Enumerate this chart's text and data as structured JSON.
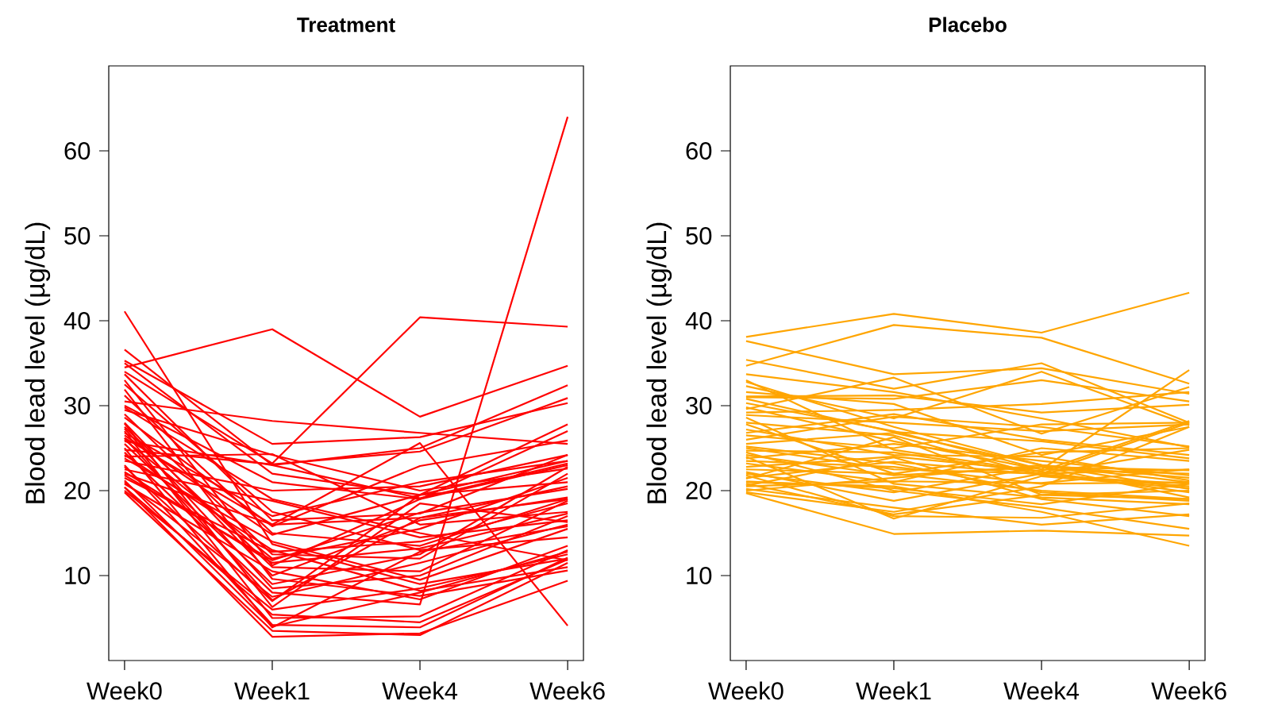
{
  "chart_data": [
    {
      "type": "line",
      "title": "Treatment",
      "ylabel": "Blood lead level (µg/dL)",
      "categories": [
        "Week0",
        "Week1",
        "Week4",
        "Week6"
      ],
      "ylim": [
        0,
        70
      ],
      "yticks": [
        10,
        20,
        30,
        40,
        50,
        60
      ],
      "series": [
        {
          "color": "#ff0000",
          "values": [
            34.5,
            39.0,
            28.7,
            34.7
          ]
        },
        {
          "color": "#ff0000",
          "values": [
            34.0,
            23.2,
            40.4,
            39.3
          ]
        },
        {
          "color": "#ff0000",
          "values": [
            41.1,
            13.7,
            9.0,
            12.0
          ]
        },
        {
          "color": "#ff0000",
          "values": [
            24.5,
            8.0,
            6.6,
            64.0
          ]
        },
        {
          "color": "#ff0000",
          "values": [
            26.2,
            16.0,
            25.6,
            4.1
          ]
        },
        {
          "color": "#ff0000",
          "values": [
            30.5,
            28.2,
            26.8,
            25.5
          ]
        },
        {
          "color": "#ff0000",
          "values": [
            35.3,
            25.5,
            26.3,
            30.3
          ]
        },
        {
          "color": "#ff0000",
          "values": [
            26.5,
            14.8,
            19.5,
            21.0
          ]
        },
        {
          "color": "#ff0000",
          "values": [
            25.8,
            23.0,
            19.1,
            23.2
          ]
        },
        {
          "color": "#ff0000",
          "values": [
            20.4,
            2.8,
            3.2,
            9.4
          ]
        },
        {
          "color": "#ff0000",
          "values": [
            20.4,
            5.4,
            4.5,
            11.9
          ]
        },
        {
          "color": "#ff0000",
          "values": [
            24.8,
            23.1,
            24.6,
            30.9
          ]
        },
        {
          "color": "#ff0000",
          "values": [
            27.9,
            6.3,
            18.5,
            16.3
          ]
        },
        {
          "color": "#ff0000",
          "values": [
            28.6,
            15.8,
            22.9,
            25.9
          ]
        },
        {
          "color": "#ff0000",
          "values": [
            31.9,
            9.6,
            7.6,
            10.6
          ]
        },
        {
          "color": "#ff0000",
          "values": [
            26.2,
            7.1,
            16.8,
            20.5
          ]
        },
        {
          "color": "#ff0000",
          "values": [
            21.8,
            11.8,
            17.4,
            20.2
          ]
        },
        {
          "color": "#ff0000",
          "values": [
            23.0,
            4.2,
            3.9,
            12.1
          ]
        },
        {
          "color": "#ff0000",
          "values": [
            22.2,
            11.5,
            13.2,
            17.3
          ]
        },
        {
          "color": "#ff0000",
          "values": [
            25.0,
            3.9,
            12.8,
            15.8
          ]
        },
        {
          "color": "#ff0000",
          "values": [
            36.6,
            23.0,
            25.0,
            32.4
          ]
        },
        {
          "color": "#ff0000",
          "values": [
            35.0,
            22.0,
            19.5,
            27.8
          ]
        },
        {
          "color": "#ff0000",
          "values": [
            33.7,
            16.5,
            17.3,
            24.2
          ]
        },
        {
          "color": "#ff0000",
          "values": [
            29.5,
            24.2,
            20.0,
            22.6
          ]
        },
        {
          "color": "#ff0000",
          "values": [
            31.2,
            15.0,
            13.5,
            19.0
          ]
        },
        {
          "color": "#ff0000",
          "values": [
            29.0,
            12.5,
            12.0,
            22.0
          ]
        },
        {
          "color": "#ff0000",
          "values": [
            27.5,
            11.0,
            10.5,
            18.8
          ]
        },
        {
          "color": "#ff0000",
          "values": [
            26.8,
            17.0,
            21.0,
            23.5
          ]
        },
        {
          "color": "#ff0000",
          "values": [
            30.0,
            21.0,
            19.0,
            23.0
          ]
        },
        {
          "color": "#ff0000",
          "values": [
            24.0,
            24.3,
            16.0,
            17.5
          ]
        },
        {
          "color": "#ff0000",
          "values": [
            23.5,
            20.0,
            20.5,
            24.2
          ]
        },
        {
          "color": "#ff0000",
          "values": [
            22.5,
            18.8,
            14.5,
            16.5
          ]
        },
        {
          "color": "#ff0000",
          "values": [
            21.5,
            12.8,
            14.0,
            18.5
          ]
        },
        {
          "color": "#ff0000",
          "values": [
            21.0,
            7.5,
            11.5,
            16.0
          ]
        },
        {
          "color": "#ff0000",
          "values": [
            20.0,
            6.0,
            8.5,
            12.5
          ]
        },
        {
          "color": "#ff0000",
          "values": [
            19.8,
            3.5,
            3.0,
            11.5
          ]
        },
        {
          "color": "#ff0000",
          "values": [
            27.0,
            5.0,
            5.2,
            13.0
          ]
        },
        {
          "color": "#ff0000",
          "values": [
            28.0,
            10.0,
            16.5,
            19.2
          ]
        },
        {
          "color": "#ff0000",
          "values": [
            32.5,
            17.5,
            13.0,
            14.5
          ]
        },
        {
          "color": "#ff0000",
          "values": [
            25.5,
            9.0,
            12.5,
            22.8
          ]
        },
        {
          "color": "#ff0000",
          "values": [
            24.2,
            13.0,
            8.2,
            11.0
          ]
        },
        {
          "color": "#ff0000",
          "values": [
            22.8,
            7.0,
            19.5,
            23.5
          ]
        },
        {
          "color": "#ff0000",
          "values": [
            21.2,
            4.0,
            8.0,
            12.8
          ]
        },
        {
          "color": "#ff0000",
          "values": [
            26.0,
            12.0,
            15.5,
            21.5
          ]
        },
        {
          "color": "#ff0000",
          "values": [
            29.8,
            19.0,
            15.0,
            11.8
          ]
        },
        {
          "color": "#ff0000",
          "values": [
            23.8,
            14.0,
            9.5,
            15.5
          ]
        },
        {
          "color": "#ff0000",
          "values": [
            20.8,
            10.5,
            7.2,
            13.5
          ]
        },
        {
          "color": "#ff0000",
          "values": [
            33.0,
            11.2,
            19.0,
            27.0
          ]
        },
        {
          "color": "#ff0000",
          "values": [
            27.3,
            8.5,
            10.0,
            17.0
          ]
        },
        {
          "color": "#ff0000",
          "values": [
            22.0,
            16.0,
            16.8,
            19.0
          ]
        }
      ]
    },
    {
      "type": "line",
      "title": "Placebo",
      "ylabel": "Blood lead level (µg/dL)",
      "categories": [
        "Week0",
        "Week1",
        "Week4",
        "Week6"
      ],
      "ylim": [
        0,
        70
      ],
      "yticks": [
        10,
        20,
        30,
        40,
        50,
        60
      ],
      "series": [
        {
          "color": "#ffa500",
          "values": [
            38.1,
            40.8,
            38.6,
            43.3
          ]
        },
        {
          "color": "#ffa500",
          "values": [
            34.7,
            39.5,
            38.0,
            32.6
          ]
        },
        {
          "color": "#ffa500",
          "values": [
            37.6,
            33.7,
            34.4,
            31.4
          ]
        },
        {
          "color": "#ffa500",
          "values": [
            30.8,
            26.9,
            25.8,
            23.8
          ]
        },
        {
          "color": "#ffa500",
          "values": [
            24.7,
            24.5,
            22.0,
            22.5
          ]
        },
        {
          "color": "#ffa500",
          "values": [
            28.6,
            20.8,
            19.2,
            18.4
          ]
        },
        {
          "color": "#ffa500",
          "values": [
            33.7,
            31.6,
            28.5,
            25.1
          ]
        },
        {
          "color": "#ffa500",
          "values": [
            19.7,
            14.9,
            15.3,
            14.7
          ]
        },
        {
          "color": "#ffa500",
          "values": [
            31.1,
            31.2,
            29.2,
            30.1
          ]
        },
        {
          "color": "#ffa500",
          "values": [
            19.8,
            17.5,
            20.5,
            27.5
          ]
        },
        {
          "color": "#ffa500",
          "values": [
            21.4,
            26.3,
            19.5,
            19.0
          ]
        },
        {
          "color": "#ffa500",
          "values": [
            21.1,
            20.3,
            18.4,
            20.8
          ]
        },
        {
          "color": "#ffa500",
          "values": [
            20.6,
            23.9,
            19.0,
            17.0
          ]
        },
        {
          "color": "#ffa500",
          "values": [
            24.0,
            16.7,
            21.7,
            20.3
          ]
        },
        {
          "color": "#ffa500",
          "values": [
            29.6,
            33.3,
            26.7,
            32.2
          ]
        },
        {
          "color": "#ffa500",
          "values": [
            21.5,
            23.4,
            21.9,
            20.5
          ]
        },
        {
          "color": "#ffa500",
          "values": [
            20.5,
            21.1,
            20.9,
            22.5
          ]
        },
        {
          "color": "#ffa500",
          "values": [
            35.4,
            32.0,
            35.0,
            28.0
          ]
        },
        {
          "color": "#ffa500",
          "values": [
            32.3,
            28.5,
            34.0,
            27.7
          ]
        },
        {
          "color": "#ffa500",
          "values": [
            31.0,
            30.8,
            33.0,
            30.5
          ]
        },
        {
          "color": "#ffa500",
          "values": [
            29.2,
            29.5,
            30.2,
            31.6
          ]
        },
        {
          "color": "#ffa500",
          "values": [
            28.9,
            28.0,
            27.0,
            27.8
          ]
        },
        {
          "color": "#ffa500",
          "values": [
            26.5,
            25.0,
            27.8,
            28.0
          ]
        },
        {
          "color": "#ffa500",
          "values": [
            27.8,
            22.0,
            24.5,
            25.0
          ]
        },
        {
          "color": "#ffa500",
          "values": [
            25.5,
            26.8,
            23.0,
            21.0
          ]
        },
        {
          "color": "#ffa500",
          "values": [
            25.0,
            22.5,
            22.0,
            24.8
          ]
        },
        {
          "color": "#ffa500",
          "values": [
            23.2,
            21.0,
            25.0,
            23.5
          ]
        },
        {
          "color": "#ffa500",
          "values": [
            22.5,
            22.0,
            20.0,
            19.0
          ]
        },
        {
          "color": "#ffa500",
          "values": [
            22.0,
            19.8,
            22.8,
            22.4
          ]
        },
        {
          "color": "#ffa500",
          "values": [
            21.8,
            17.0,
            16.8,
            18.5
          ]
        },
        {
          "color": "#ffa500",
          "values": [
            20.2,
            18.0,
            16.0,
            17.2
          ]
        },
        {
          "color": "#ffa500",
          "values": [
            20.0,
            21.5,
            23.0,
            21.5
          ]
        },
        {
          "color": "#ffa500",
          "values": [
            32.8,
            27.5,
            23.0,
            20.2
          ]
        },
        {
          "color": "#ffa500",
          "values": [
            30.3,
            27.0,
            22.5,
            34.2
          ]
        },
        {
          "color": "#ffa500",
          "values": [
            33.0,
            24.8,
            22.2,
            19.8
          ]
        },
        {
          "color": "#ffa500",
          "values": [
            28.0,
            26.5,
            21.8,
            20.8
          ]
        },
        {
          "color": "#ffa500",
          "values": [
            26.0,
            28.7,
            27.5,
            25.2
          ]
        },
        {
          "color": "#ffa500",
          "values": [
            24.5,
            20.0,
            18.0,
            15.5
          ]
        },
        {
          "color": "#ffa500",
          "values": [
            23.8,
            25.5,
            23.5,
            21.8
          ]
        },
        {
          "color": "#ffa500",
          "values": [
            22.8,
            24.0,
            22.3,
            28.2
          ]
        },
        {
          "color": "#ffa500",
          "values": [
            21.0,
            20.5,
            17.5,
            13.5
          ]
        },
        {
          "color": "#ffa500",
          "values": [
            20.8,
            17.2,
            19.5,
            20.0
          ]
        },
        {
          "color": "#ffa500",
          "values": [
            27.2,
            24.2,
            24.0,
            21.2
          ]
        },
        {
          "color": "#ffa500",
          "values": [
            25.2,
            23.2,
            19.8,
            18.8
          ]
        },
        {
          "color": "#ffa500",
          "values": [
            29.8,
            25.8,
            22.5,
            22.0
          ]
        },
        {
          "color": "#ffa500",
          "values": [
            26.8,
            29.0,
            26.0,
            24.2
          ]
        },
        {
          "color": "#ffa500",
          "values": [
            24.2,
            21.8,
            22.8,
            19.2
          ]
        },
        {
          "color": "#ffa500",
          "values": [
            22.2,
            18.8,
            22.0,
            28.0
          ]
        },
        {
          "color": "#ffa500",
          "values": [
            23.5,
            22.8,
            20.8,
            21.0
          ]
        },
        {
          "color": "#ffa500",
          "values": [
            31.6,
            30.2,
            24.2,
            27.5
          ]
        }
      ]
    }
  ]
}
